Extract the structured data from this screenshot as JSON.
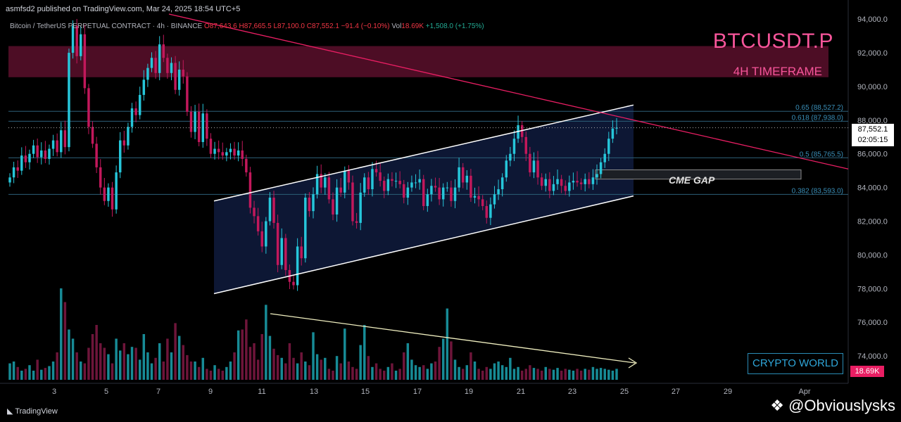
{
  "header": {
    "published": "asmfsd2 published on TradingView.com, Mar 24, 2025 18:54 UTC+5",
    "symbol_line": "Bitcoin / TetherUS PERPETUAL CONTRACT · 4h · BINANCE",
    "ohlc": {
      "o": "O87,643.6",
      "h": "H87,665.5",
      "l": "L87,100.0",
      "c": "C87,552.1",
      "chg": "−91.4 (−0.10%)"
    },
    "volume": {
      "label": "Vol",
      "value": "18.69K",
      "chg": "+1,508.0 (+1.75%)"
    }
  },
  "annotations": {
    "ticker": "BTCUSDT.P",
    "timeframe": "4H TIMEFRAME",
    "cme_gap": "CME GAP",
    "brand_box": "CRYPTO WORLD"
  },
  "price_tag": {
    "price": "87,552.1",
    "countdown": "02:05:15"
  },
  "volume_tag": "18.69K",
  "footer": {
    "logo": "TradingView",
    "handle": "@Obviouslysks"
  },
  "colors": {
    "up": "#26c6da",
    "down": "#c2185b",
    "resistance_zone": "#5a0f2c",
    "trendline": "#e91e63"
  },
  "chart_data": {
    "type": "candlestick",
    "y_axis": {
      "min": 72500,
      "max": 94300,
      "ticks": [
        "94,000.0",
        "92,000.0",
        "90,000.0",
        "88,000.0",
        "86,000.0",
        "84,000.0",
        "82,000.0",
        "80,000.0",
        "78,000.0",
        "76,000.0",
        "74,000.0"
      ]
    },
    "x_axis": {
      "ticks": [
        "3",
        "5",
        "7",
        "9",
        "11",
        "13",
        "15",
        "17",
        "19",
        "21",
        "23",
        "25",
        "27",
        "29",
        "Apr"
      ]
    },
    "candles_close": [
      84600,
      85200,
      85000,
      85900,
      85500,
      86000,
      86500,
      85800,
      86200,
      85700,
      86300,
      86800,
      86100,
      87400,
      86400,
      92000,
      93600,
      91800,
      93100,
      89900,
      87600,
      86600,
      85200,
      84000,
      83200,
      84000,
      82700,
      84900,
      86800,
      86500,
      87600,
      88700,
      88300,
      89500,
      90400,
      91100,
      91700,
      90800,
      92500,
      91700,
      90800,
      91400,
      89800,
      91000,
      90600,
      88500,
      87300,
      88500,
      86700,
      88400,
      86900,
      86000,
      86300,
      86100,
      85900,
      86100,
      86300,
      85900,
      86200,
      85700,
      84900,
      82800,
      82300,
      81400,
      80500,
      82000,
      83400,
      81900,
      79400,
      81000,
      79100,
      78400,
      78200,
      80500,
      79800,
      83400,
      82600,
      83600,
      84800,
      84000,
      84600,
      83300,
      82400,
      84000,
      83700,
      85000,
      84300,
      82000,
      81900,
      83700,
      84600,
      83900,
      85100,
      84900,
      84400,
      83800,
      84500,
      84400,
      84400,
      84200,
      83400,
      84000,
      84300,
      84300,
      84500,
      82900,
      83600,
      84100,
      84000,
      83300,
      84000,
      84000,
      83200,
      84000,
      85200,
      84300,
      84700,
      83400,
      83500,
      83300,
      82900,
      82200,
      83000,
      83600,
      83900,
      84600,
      85600,
      86000,
      86900,
      87700,
      87000,
      86000,
      84900,
      85600,
      84600,
      84100,
      84500,
      83800,
      84200,
      84500,
      84100,
      83800,
      84300,
      84400,
      84300,
      84200,
      84500,
      84200,
      84600,
      84800,
      85500,
      86000,
      86900,
      87500,
      87552
    ],
    "volume_relative": [
      0.18,
      0.2,
      0.14,
      0.1,
      0.12,
      0.16,
      0.1,
      0.22,
      0.11,
      0.13,
      0.15,
      0.2,
      0.3,
      1.0,
      0.85,
      0.55,
      0.45,
      0.3,
      0.2,
      0.18,
      0.35,
      0.5,
      0.6,
      0.4,
      0.35,
      0.28,
      0.18,
      0.45,
      0.32,
      0.4,
      0.28,
      0.36,
      0.35,
      0.22,
      0.5,
      0.3,
      0.18,
      0.24,
      0.4,
      0.2,
      0.45,
      0.3,
      0.62,
      0.48,
      0.38,
      0.27,
      0.2,
      0.2,
      0.14,
      0.24,
      0.12,
      0.1,
      0.16,
      0.12,
      0.1,
      0.14,
      0.2,
      0.3,
      0.54,
      0.55,
      0.66,
      0.36,
      0.4,
      0.22,
      0.5,
      0.82,
      0.48,
      0.34,
      0.27,
      0.24,
      0.18,
      0.4,
      0.24,
      0.18,
      0.3,
      0.2,
      0.16,
      0.52,
      0.28,
      0.22,
      0.24,
      0.12,
      0.1,
      0.26,
      0.18,
      0.56,
      0.2,
      0.14,
      0.12,
      0.38,
      0.6,
      0.26,
      0.14,
      0.18,
      0.12,
      0.1,
      0.14,
      0.18,
      0.1,
      0.12,
      0.3,
      0.4,
      0.22,
      0.16,
      0.14,
      0.16,
      0.12,
      0.18,
      0.2,
      0.36,
      0.45,
      0.78,
      0.42,
      0.22,
      0.14,
      0.12,
      0.16,
      0.3,
      0.2,
      0.12,
      0.1,
      0.14,
      0.12,
      0.18,
      0.2,
      0.16,
      0.14,
      0.24,
      0.12,
      0.14,
      0.1,
      0.12,
      0.16,
      0.13,
      0.12,
      0.1,
      0.14,
      0.12,
      0.11,
      0.13,
      0.1,
      0.12,
      0.11,
      0.1,
      0.12,
      0.1,
      0.12,
      0.11,
      0.14,
      0.12,
      0.13,
      0.12,
      0.11,
      0.1,
      0.12
    ],
    "fib_levels": [
      {
        "label": "0.65 (88,527.2)",
        "price": 88527.2
      },
      {
        "label": "0.618 (87,938.0)",
        "price": 87938.0
      },
      {
        "label": "0.5 (85,765.5)",
        "price": 85765.5
      },
      {
        "label": "0.382 (83,593.0)",
        "price": 83593.0
      }
    ],
    "current_price": 87552.1,
    "resistance_zone": [
      90550,
      92400
    ],
    "cme_gap_zone": [
      84500,
      85050
    ],
    "channel": {
      "upper": [
        [
          0.0,
          83200
        ],
        [
          1.0,
          88900
        ]
      ],
      "lower": [
        [
          0.0,
          77700
        ],
        [
          1.0,
          83500
        ]
      ]
    },
    "descending_trendline": [
      [
        94300,
        0.0
      ],
      [
        85100,
        1.0
      ]
    ]
  }
}
